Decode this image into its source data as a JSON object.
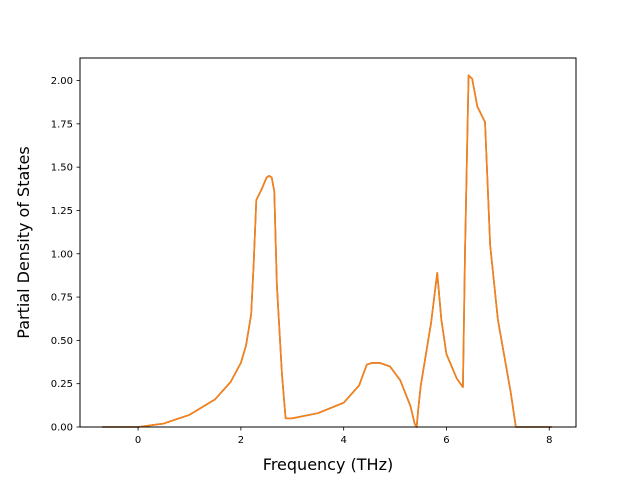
{
  "chart_data": {
    "type": "line",
    "title": "",
    "xlabel": "Frequency (THz)",
    "ylabel": "Partial Density of States",
    "xlim": [
      -1.13,
      8.52
    ],
    "ylim": [
      0,
      2.13
    ],
    "xticks": [
      "0",
      "2",
      "4",
      "6",
      "8"
    ],
    "yticks": [
      "0.00",
      "0.25",
      "0.50",
      "0.75",
      "1.00",
      "1.25",
      "1.50",
      "1.75",
      "2.00"
    ],
    "grid": false,
    "legend": "none",
    "series": [
      {
        "color": "#1f77b4",
        "x": [
          -0.7,
          0.0,
          0.5,
          1.0,
          1.5,
          1.8,
          2.0,
          2.1,
          2.2,
          2.25,
          2.3,
          2.4,
          2.5,
          2.55,
          2.6,
          2.65,
          2.7,
          2.8,
          2.87,
          3.0,
          3.5,
          4.0,
          4.3,
          4.45,
          4.55,
          4.7,
          4.9,
          5.1,
          5.3,
          5.38,
          5.42,
          5.45,
          5.5,
          5.7,
          5.82,
          5.9,
          6.0,
          6.2,
          6.32,
          6.36,
          6.43,
          6.5,
          6.6,
          6.75,
          6.85,
          7.0,
          7.25,
          7.35,
          8.05
        ],
        "y": [
          0.0,
          0.0,
          0.02,
          0.07,
          0.16,
          0.26,
          0.37,
          0.47,
          0.65,
          0.95,
          1.31,
          1.37,
          1.44,
          1.45,
          1.44,
          1.36,
          0.82,
          0.3,
          0.05,
          0.05,
          0.08,
          0.14,
          0.24,
          0.36,
          0.37,
          0.37,
          0.35,
          0.27,
          0.12,
          0.02,
          0.0,
          0.1,
          0.24,
          0.6,
          0.89,
          0.62,
          0.42,
          0.28,
          0.23,
          1.0,
          2.03,
          2.01,
          1.85,
          1.76,
          1.05,
          0.62,
          0.2,
          0.0,
          0.0
        ]
      },
      {
        "color": "#ff7f0e",
        "x": [
          -0.7,
          0.0,
          0.5,
          1.0,
          1.5,
          1.8,
          2.0,
          2.1,
          2.2,
          2.25,
          2.3,
          2.4,
          2.5,
          2.55,
          2.6,
          2.65,
          2.7,
          2.8,
          2.87,
          3.0,
          3.5,
          4.0,
          4.3,
          4.45,
          4.55,
          4.7,
          4.9,
          5.1,
          5.3,
          5.38,
          5.42,
          5.45,
          5.5,
          5.7,
          5.82,
          5.9,
          6.0,
          6.2,
          6.32,
          6.36,
          6.43,
          6.5,
          6.6,
          6.75,
          6.85,
          7.0,
          7.25,
          7.35,
          8.05
        ],
        "y": [
          0.0,
          0.0,
          0.02,
          0.07,
          0.16,
          0.26,
          0.37,
          0.47,
          0.65,
          0.95,
          1.31,
          1.37,
          1.44,
          1.45,
          1.44,
          1.36,
          0.82,
          0.3,
          0.05,
          0.05,
          0.08,
          0.14,
          0.24,
          0.36,
          0.37,
          0.37,
          0.35,
          0.27,
          0.12,
          0.02,
          0.0,
          0.1,
          0.24,
          0.6,
          0.89,
          0.62,
          0.42,
          0.28,
          0.23,
          1.0,
          2.03,
          2.01,
          1.85,
          1.76,
          1.05,
          0.62,
          0.2,
          0.0,
          0.0
        ]
      }
    ]
  }
}
